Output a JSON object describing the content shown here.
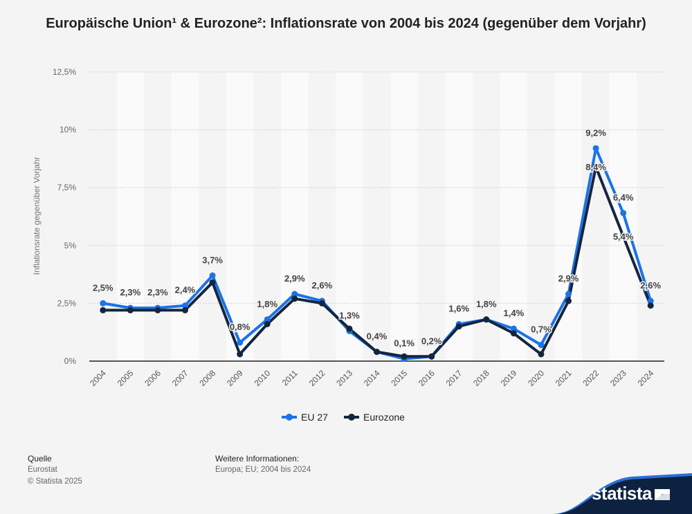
{
  "title": "Europäische Union¹ & Eurozone²: Inflationsrate von 2004 bis 2024 (gegenüber dem Vorjahr)",
  "footer": {
    "source_heading": "Quelle",
    "source_line1": "Eurostat",
    "source_line2": "© Statista 2025",
    "info_heading": "Weitere Informationen:",
    "info_text": "Europa; EU; 2004 bis 2024",
    "brand": "statista"
  },
  "colors": {
    "eu": "#1a73e8",
    "ez": "#14253f",
    "grid": "#cfcfcf",
    "band": "#fafafa",
    "axis": "#222222",
    "brand_bg": "#0d2241"
  },
  "chart_data": {
    "type": "line",
    "title": "Europäische Union¹ & Eurozone²: Inflationsrate von 2004 bis 2024 (gegenüber dem Vorjahr)",
    "xlabel": "",
    "ylabel": "Inflationsrate gegenüber Vorjahr",
    "ylim": [
      0,
      12.5
    ],
    "yticks": [
      0,
      2.5,
      5,
      7.5,
      10,
      12.5
    ],
    "ytick_labels": [
      "0%",
      "2,5%",
      "5%",
      "7,5%",
      "10%",
      "12,5%"
    ],
    "categories": [
      "2004",
      "2005",
      "2006",
      "2007",
      "2008",
      "2009",
      "2010",
      "2011",
      "2012",
      "2013",
      "2014",
      "2015",
      "2016",
      "2017",
      "2018",
      "2019",
      "2020",
      "2021",
      "2022",
      "2023",
      "2024"
    ],
    "series": [
      {
        "name": "EU 27",
        "values": [
          2.5,
          2.3,
          2.3,
          2.4,
          3.7,
          0.8,
          1.8,
          2.9,
          2.6,
          1.3,
          0.4,
          0.1,
          0.2,
          1.6,
          1.8,
          1.4,
          0.7,
          2.9,
          9.2,
          6.4,
          2.6
        ],
        "labels": [
          "2,5%",
          "2,3%",
          "2,3%",
          "2,4%",
          "3,7%",
          "0,8%",
          "1,8%",
          "2,9%",
          "2,6%",
          "1,3%",
          "0,4%",
          "0,1%",
          "0,2%",
          "1,6%",
          "1,8%",
          "1,4%",
          "0,7%",
          "2,9%",
          "9,2%",
          "6,4%",
          "2,6%"
        ]
      },
      {
        "name": "Eurozone",
        "values": [
          2.2,
          2.2,
          2.2,
          2.2,
          3.4,
          0.3,
          1.6,
          2.7,
          2.5,
          1.4,
          0.4,
          0.2,
          0.2,
          1.5,
          1.8,
          1.2,
          0.3,
          2.6,
          8.4,
          5.4,
          2.4
        ],
        "labels": [
          "",
          "",
          "",
          "",
          "",
          "",
          "",
          "",
          "",
          "",
          "",
          "",
          "",
          "",
          "",
          "",
          "",
          "",
          "8,4%",
          "5,4%",
          ""
        ]
      }
    ],
    "legend": "bottom-center"
  }
}
